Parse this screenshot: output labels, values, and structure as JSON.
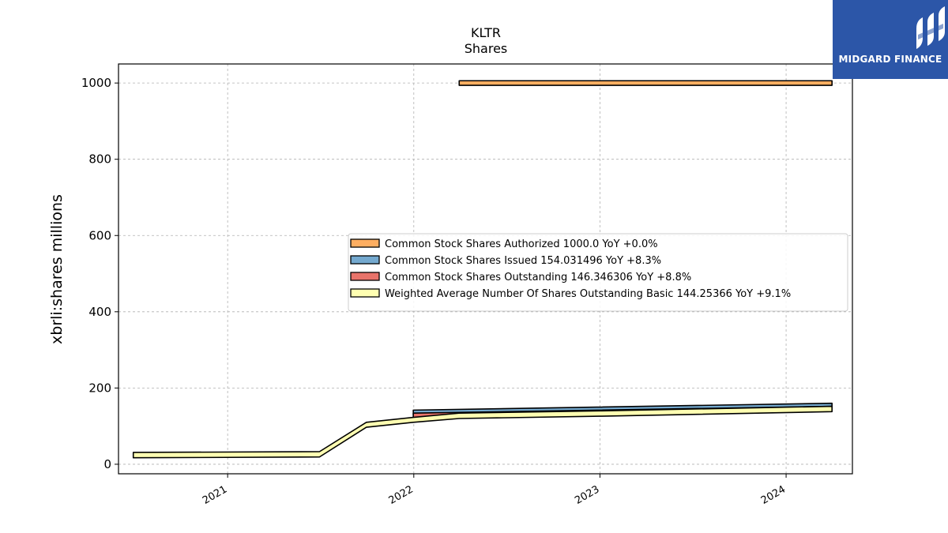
{
  "brand": {
    "name": "MIDGARD FINANCE",
    "color": "#2c56a8"
  },
  "chart_data": {
    "type": "area",
    "title": "KLTR",
    "subtitle": "Shares",
    "xlabel": "",
    "ylabel": "xbrli:shares millions",
    "x_ticks": [
      "2021",
      "2022",
      "2023",
      "2024"
    ],
    "y_ticks": [
      "0",
      "200",
      "400",
      "600",
      "800",
      "1000"
    ],
    "xlim": [
      "2020-06-01",
      "2024-05-10"
    ],
    "ylim": [
      -25,
      1050
    ],
    "grid": true,
    "legend_position": "center-right",
    "series": [
      {
        "name": "Common Stock Shares Authorized",
        "legend": "Common Stock Shares Authorized  1000.0 YoY +0.0%",
        "color": "#fdae61",
        "x": [
          "2022-03-31",
          "2024-03-31"
        ],
        "low": [
          994,
          994
        ],
        "high": [
          1006,
          1006
        ]
      },
      {
        "name": "Common Stock Shares Issued",
        "legend": "Common Stock Shares Issued  154.031496 YoY +8.3%",
        "color": "#74a9cf",
        "x": [
          "2021-12-31",
          "2024-03-31"
        ],
        "low": [
          130,
          148
        ],
        "high": [
          142,
          160
        ]
      },
      {
        "name": "Common Stock Shares Outstanding",
        "legend": "Common Stock Shares Outstanding  146.346306 YoY +8.8%",
        "color": "#e8736a",
        "x": [
          "2021-12-31",
          "2024-03-31"
        ],
        "low": [
          122,
          140
        ],
        "high": [
          134,
          152
        ]
      },
      {
        "name": "Weighted Average Number Of Shares Outstanding Basic",
        "legend": "Weighted Average Number Of Shares Outstanding Basic  144.25366 YoY +9.1%",
        "color": "#ffffb2",
        "x": [
          "2020-06-30",
          "2021-06-30",
          "2021-09-30",
          "2021-12-31",
          "2022-03-31",
          "2022-12-31",
          "2024-03-31"
        ],
        "low": [
          17,
          19,
          97,
          110,
          120,
          126,
          138
        ],
        "high": [
          31,
          33,
          110,
          123,
          134,
          140,
          152
        ]
      }
    ]
  }
}
